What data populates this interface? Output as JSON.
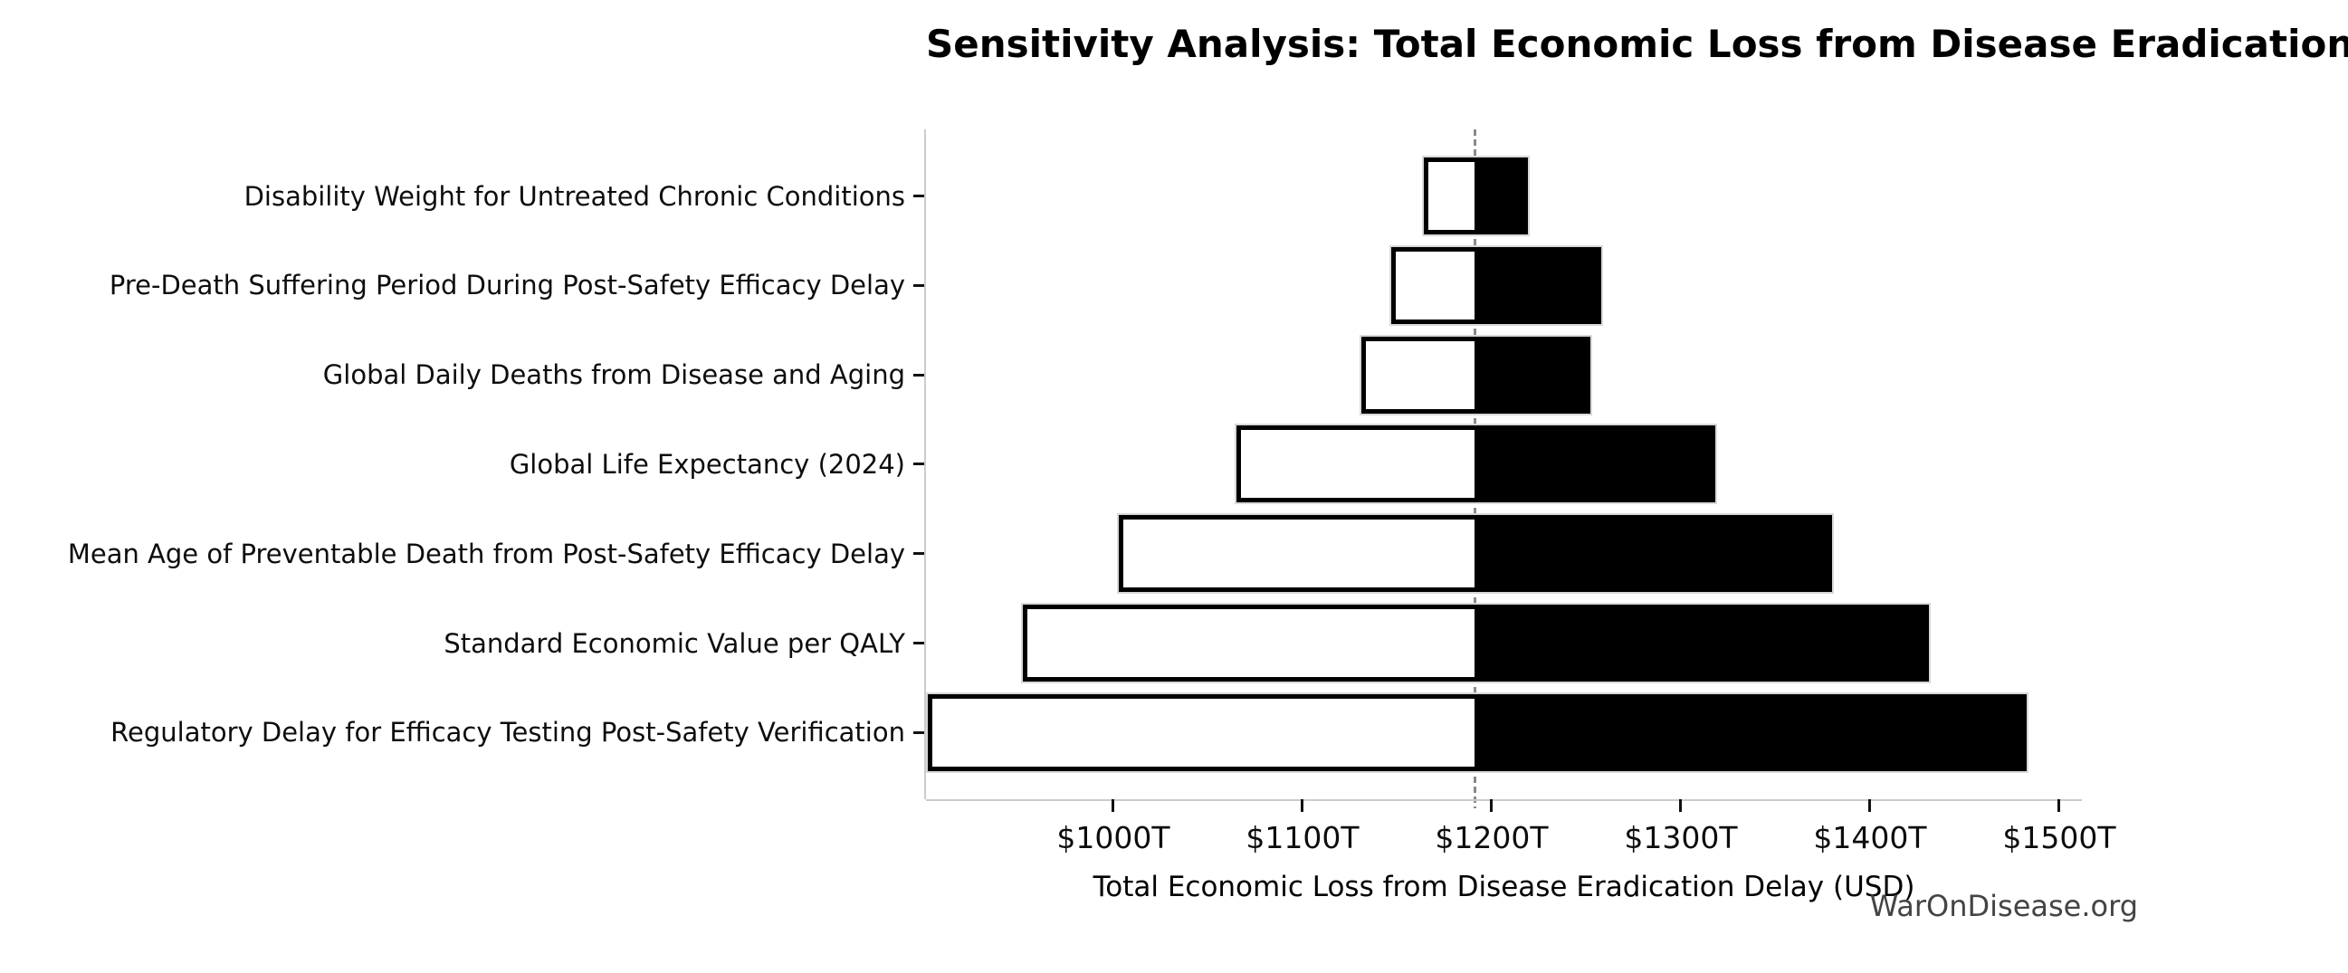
{
  "page": {
    "background": "#ffffff"
  },
  "chart_data": {
    "type": "bar",
    "subtype": "tornado-sensitivity",
    "orientation": "horizontal",
    "title": "Sensitivity Analysis: Total Economic Loss from Disease Eradication Delay",
    "xlabel": "Total Economic Loss from Disease Eradication Delay (USD)",
    "watermark": "WarOnDisease.org",
    "unit": "trillions of USD",
    "xlim": [
      901,
      1512
    ],
    "baseline_value": 1191,
    "grid": "off",
    "legend": "none",
    "x_ticks": [
      {
        "value": 1000,
        "label": "$1000T"
      },
      {
        "value": 1100,
        "label": "$1100T"
      },
      {
        "value": 1200,
        "label": "$1200T"
      },
      {
        "value": 1300,
        "label": "$1300T"
      },
      {
        "value": 1400,
        "label": "$1400T"
      },
      {
        "value": 1500,
        "label": "$1500T"
      }
    ],
    "rows": [
      {
        "label": "Disability Weight for Untreated Chronic Conditions",
        "low": 1164,
        "high": 1219
      },
      {
        "label": "Pre-Death Suffering Period During Post-Safety Efficacy Delay",
        "low": 1147,
        "high": 1258
      },
      {
        "label": "Global Daily Deaths from Disease and Aging",
        "low": 1131,
        "high": 1252
      },
      {
        "label": "Global Life Expectancy (2024)",
        "low": 1065,
        "high": 1318
      },
      {
        "label": "Mean Age of Preventable Death from Post-Safety Efficacy Delay",
        "low": 1003,
        "high": 1380
      },
      {
        "label": "Standard Economic Value per QALY",
        "low": 952,
        "high": 1431
      },
      {
        "label": "Regulatory Delay for Efficacy Testing Post-Safety Verification",
        "low": 902,
        "high": 1483
      }
    ],
    "colors": {
      "decrease_fill": "#ffffff",
      "increase_fill": "#000000",
      "bar_edge": "#000000",
      "bar_outer_edge": "#d9d9d9",
      "baseline_line": "#8a8a8a",
      "spine": "#cccccc",
      "tick": "#111111",
      "text": "#0d0d0d",
      "watermark_color": "#444444"
    }
  }
}
